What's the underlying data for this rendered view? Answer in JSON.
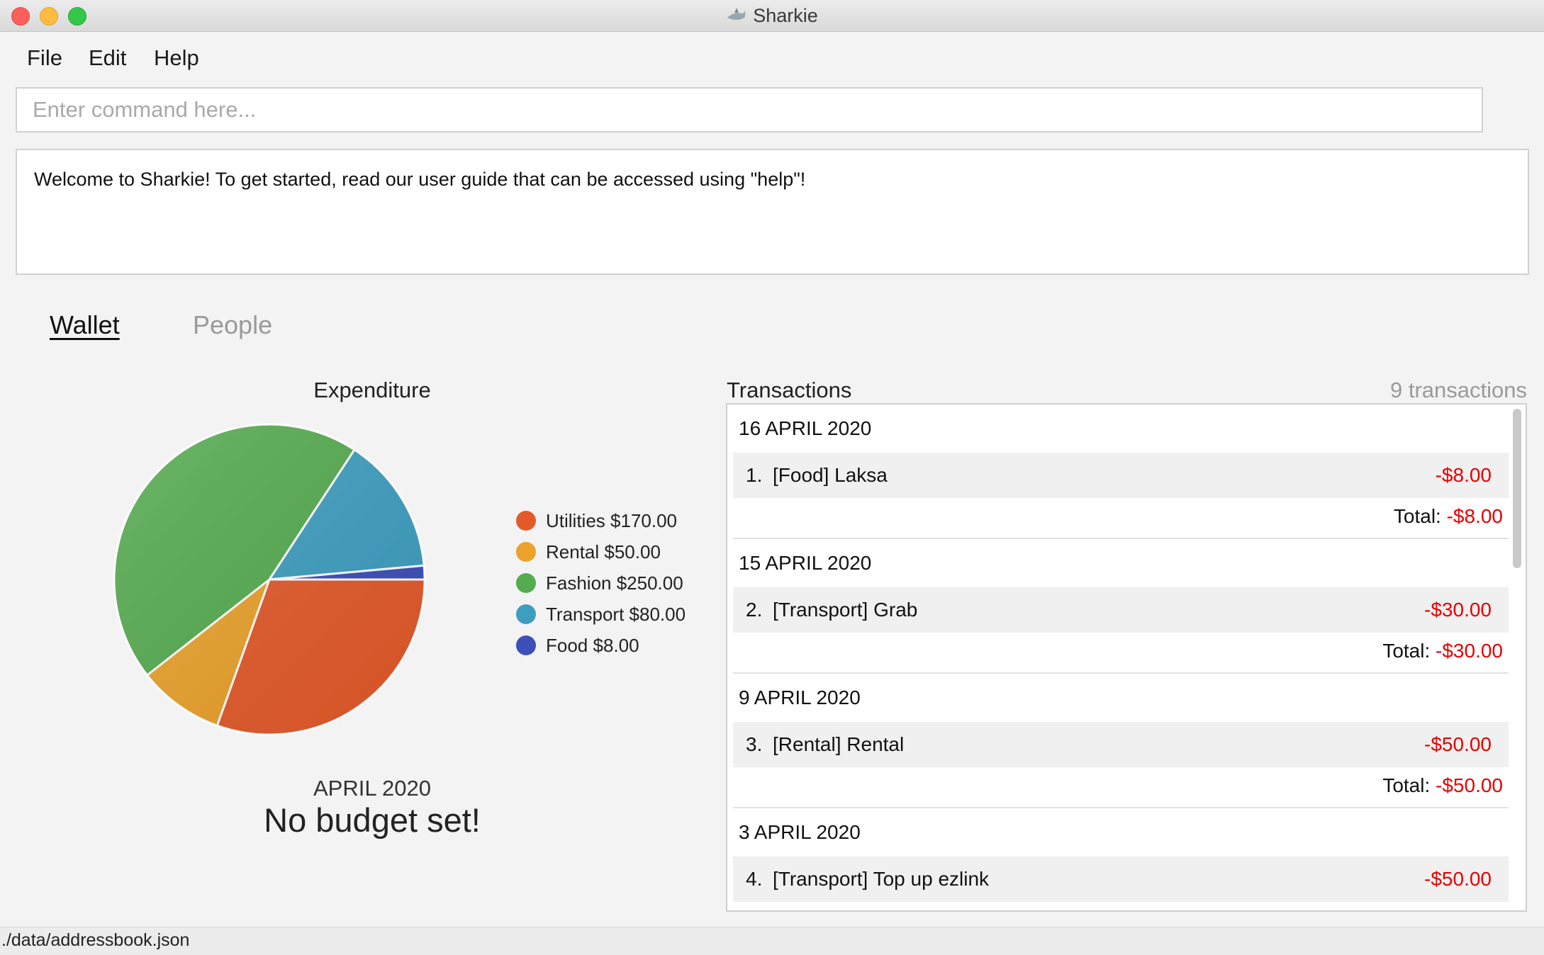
{
  "window": {
    "title": "Sharkie"
  },
  "menu": [
    "File",
    "Edit",
    "Help"
  ],
  "command": {
    "placeholder": "Enter command here...",
    "value": ""
  },
  "result": {
    "message": "Welcome to Sharkie! To get started, read our user guide that can be accessed using \"help\"!"
  },
  "tabs": [
    {
      "label": "Wallet",
      "active": true
    },
    {
      "label": "People",
      "active": false
    }
  ],
  "expenditure": {
    "title": "Expenditure",
    "month": "APRIL 2020",
    "budget_status": "No budget set!"
  },
  "chart_data": {
    "type": "pie",
    "title": "Expenditure",
    "slices": [
      {
        "label": "Utilities",
        "value": 170.0,
        "legend": "Utilities $170.00",
        "color": "#e35a2a"
      },
      {
        "label": "Rental",
        "value": 50.0,
        "legend": "Rental $50.00",
        "color": "#eaa22b"
      },
      {
        "label": "Fashion",
        "value": 250.0,
        "legend": "Fashion $250.00",
        "color": "#55ab50"
      },
      {
        "label": "Transport",
        "value": 80.0,
        "legend": "Transport $80.00",
        "color": "#3e9ec0"
      },
      {
        "label": "Food",
        "value": 8.0,
        "legend": "Food $8.00",
        "color": "#3d4fb8"
      }
    ],
    "legend_position": "right"
  },
  "transactions": {
    "title": "Transactions",
    "count_label": "9 transactions",
    "total_label": "Total: ",
    "days": [
      {
        "date": "16 APRIL 2020",
        "items": [
          {
            "index": "1.",
            "text": "[Food]  Laksa",
            "amount": "-$8.00"
          }
        ],
        "total": "-$8.00"
      },
      {
        "date": "15 APRIL 2020",
        "items": [
          {
            "index": "2.",
            "text": "[Transport]  Grab",
            "amount": "-$30.00"
          }
        ],
        "total": "-$30.00"
      },
      {
        "date": "9 APRIL 2020",
        "items": [
          {
            "index": "3.",
            "text": "[Rental]  Rental",
            "amount": "-$50.00"
          }
        ],
        "total": "-$50.00"
      },
      {
        "date": "3 APRIL 2020",
        "items": [
          {
            "index": "4.",
            "text": "[Transport]  Top up ezlink",
            "amount": "-$50.00"
          }
        ],
        "total": ""
      }
    ]
  },
  "status": {
    "path": "./data/addressbook.json"
  }
}
